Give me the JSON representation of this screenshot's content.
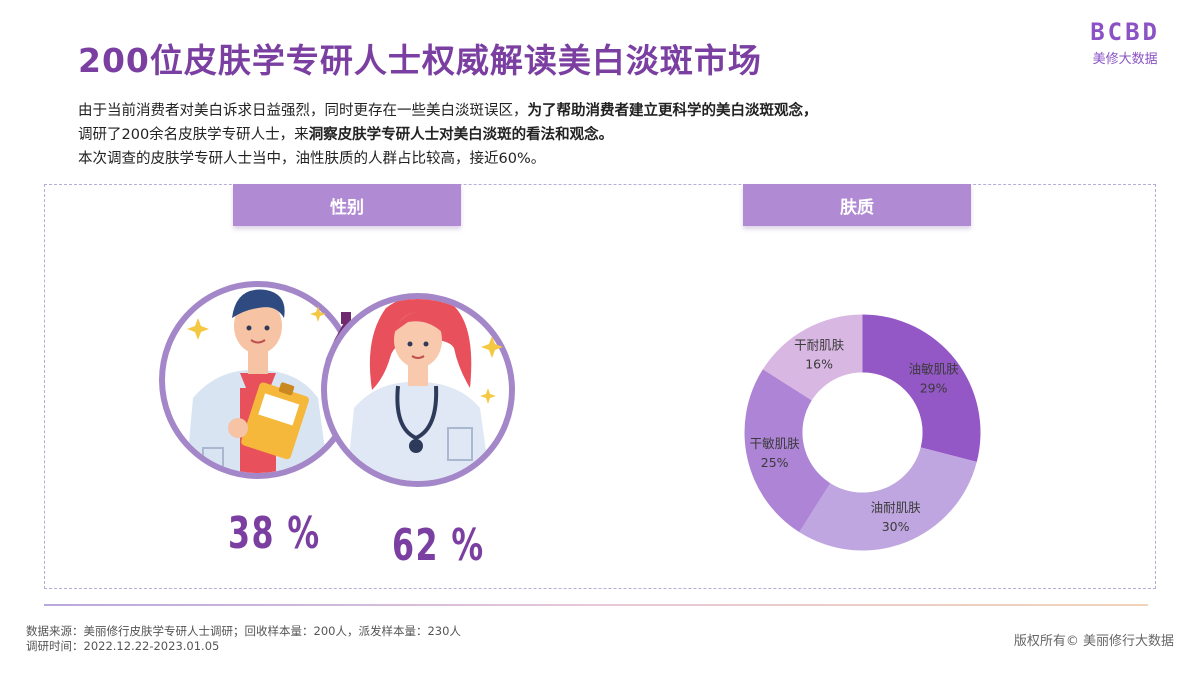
{
  "header": {
    "title": "200位皮肤学专研人士权威解读美白淡斑市场",
    "brand_logo": "BCBD",
    "brand_name": "美修大数据"
  },
  "intro": {
    "line1_normal": "由于当前消费者对美白诉求日益强烈，同时更存在一些美白淡斑误区，",
    "line1_bold": "为了帮助消费者建立更科学的美白淡斑观念，",
    "line2_normal": "调研了200余名皮肤学专研人士，来",
    "line2_bold": "洞察皮肤学专研人士对美白淡斑的看法和观念。",
    "line3": "本次调查的皮肤学专研人士当中，油性肤质的人群占比较高，接近60%。"
  },
  "gender_section": {
    "tab_label": "性别",
    "male_pct": "38 %",
    "female_pct": "62 %"
  },
  "skin_section": {
    "tab_label": "肤质"
  },
  "chart_data": [
    {
      "type": "pie",
      "categories": [
        "男",
        "女"
      ],
      "values": [
        38,
        62
      ]
    },
    {
      "type": "pie",
      "categories": [
        "油敏肌肤",
        "油耐肌肤",
        "干敏肌肤",
        "干耐肌肤"
      ],
      "values": [
        29,
        30,
        25,
        16
      ],
      "value_labels": [
        "29%",
        "30%",
        "25%",
        "16%"
      ],
      "colors": [
        "#9457c6",
        "#c0a6e0",
        "#ad84d6",
        "#d9b7e3"
      ]
    }
  ],
  "footer": {
    "source_line": "数据来源：美丽修行皮肤学专研人士调研；回收样本量：200人，派发样本量：230人",
    "time_line": "调研时间：2022.12.22-2023.01.05",
    "copyright": "版权所有© 美丽修行大数据"
  }
}
